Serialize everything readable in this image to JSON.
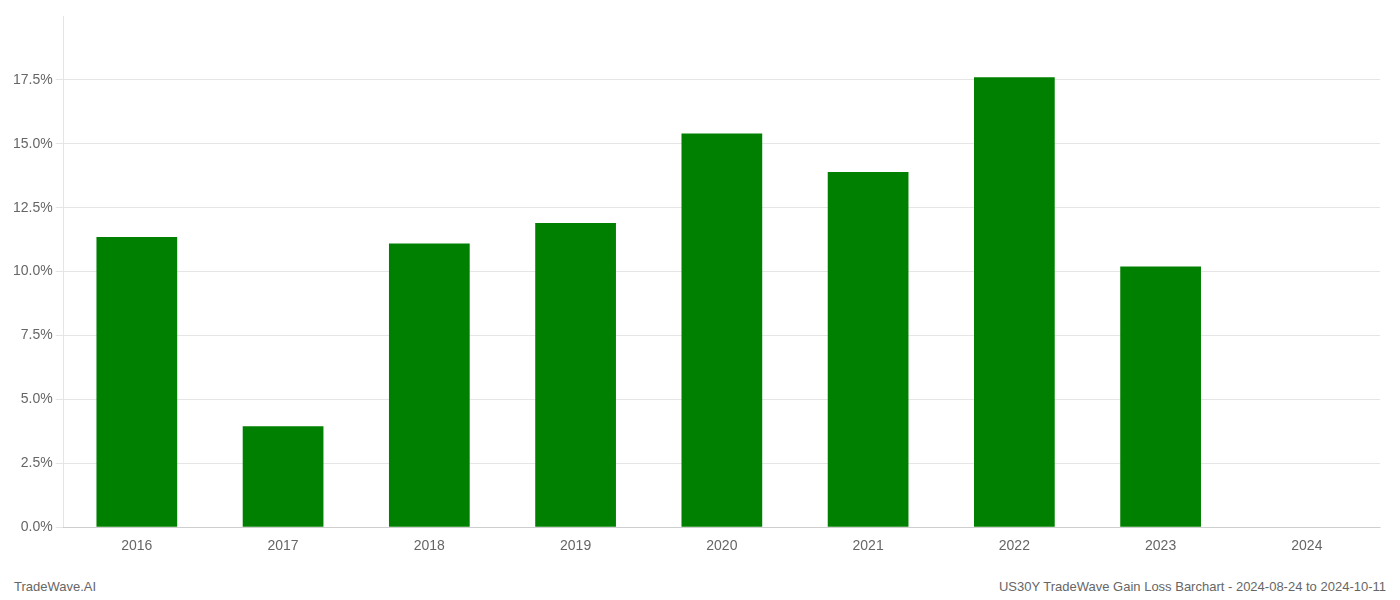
{
  "chart_data": {
    "type": "bar",
    "categories": [
      "2016",
      "2017",
      "2018",
      "2019",
      "2020",
      "2021",
      "2022",
      "2023",
      "2024"
    ],
    "values": [
      0.1135,
      0.0395,
      0.111,
      0.119,
      0.154,
      0.139,
      0.176,
      0.102,
      0.0
    ],
    "color": "#008000",
    "ylim": [
      0.0,
      0.2
    ],
    "yticks": [
      {
        "value": 0.0,
        "label": "0.0%"
      },
      {
        "value": 0.025,
        "label": "2.5%"
      },
      {
        "value": 0.05,
        "label": "5.0%"
      },
      {
        "value": 0.075,
        "label": "7.5%"
      },
      {
        "value": 0.1,
        "label": "10.0%"
      },
      {
        "value": 0.125,
        "label": "12.5%"
      },
      {
        "value": 0.15,
        "label": "15.0%"
      },
      {
        "value": 0.175,
        "label": "17.5%"
      }
    ],
    "grid": true,
    "annotations": [
      "TradeWave.AI",
      "US30Y TradeWave Gain Loss Barchart - 2024-08-24 to 2024-10-11"
    ]
  }
}
